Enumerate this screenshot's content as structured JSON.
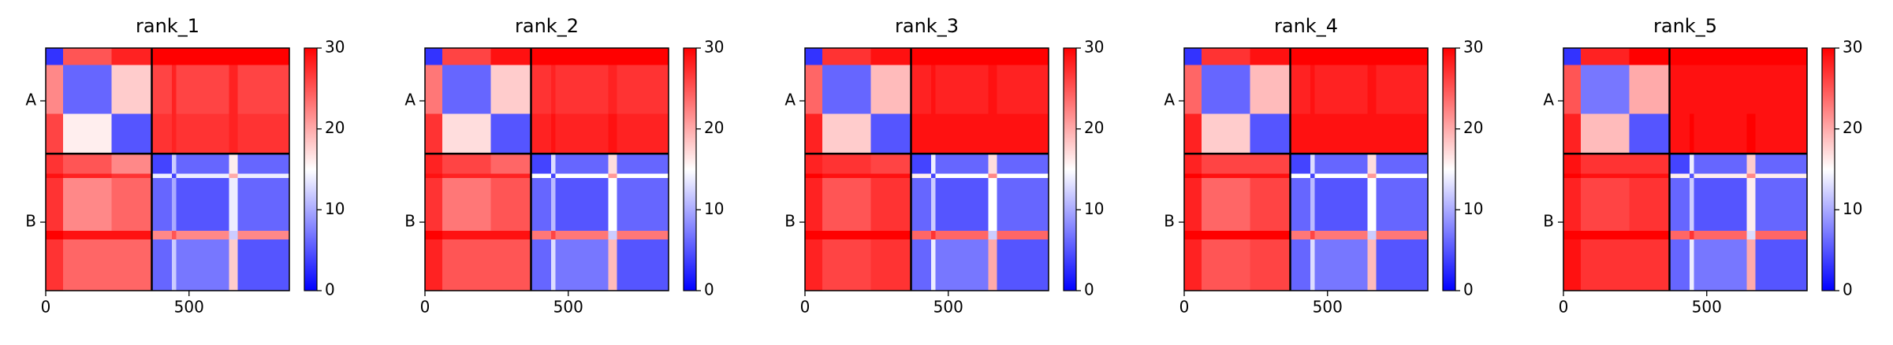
{
  "chart_data": [
    {
      "type": "heatmap",
      "title": "rank_1",
      "colormap": "bwr",
      "bins": [
        0,
        60,
        230,
        370,
        440,
        455,
        640,
        670,
        850
      ],
      "xlim": [
        0,
        850
      ],
      "ylim": [
        0,
        850
      ],
      "invert_y": true,
      "xticks": [
        0,
        500
      ],
      "yticks": [
        {
          "value": 185,
          "label": "A"
        },
        {
          "value": 610,
          "label": "B"
        }
      ],
      "chain_breaks": [
        370
      ],
      "clim": [
        0,
        30
      ],
      "cticks": [
        0,
        10,
        20,
        30
      ],
      "values": [
        [
          3,
          25,
          28,
          30,
          30,
          30,
          30,
          30
        ],
        [
          22,
          6,
          18,
          26,
          28,
          26,
          28,
          26
        ],
        [
          26,
          16,
          5,
          27,
          28,
          27,
          28,
          27
        ],
        [
          27,
          25,
          22,
          4,
          12,
          6,
          16,
          6
        ],
        [
          29,
          28,
          27,
          14,
          4,
          14,
          20,
          14
        ],
        [
          27,
          22,
          24,
          6,
          10,
          5,
          14,
          6
        ],
        [
          30,
          29,
          29,
          22,
          25,
          22,
          12,
          22
        ],
        [
          27,
          24,
          24,
          6,
          12,
          7,
          18,
          5
        ]
      ]
    },
    {
      "type": "heatmap",
      "title": "rank_2",
      "colormap": "bwr",
      "bins": [
        0,
        60,
        230,
        370,
        440,
        455,
        640,
        670,
        850
      ],
      "xlim": [
        0,
        850
      ],
      "ylim": [
        0,
        850
      ],
      "invert_y": true,
      "xticks": [
        0,
        500
      ],
      "yticks": [
        {
          "value": 185,
          "label": "A"
        },
        {
          "value": 610,
          "label": "B"
        }
      ],
      "chain_breaks": [
        370
      ],
      "clim": [
        0,
        30
      ],
      "cticks": [
        0,
        10,
        20,
        30
      ],
      "values": [
        [
          3,
          26,
          29,
          30,
          30,
          30,
          30,
          30
        ],
        [
          23,
          6,
          18,
          27,
          28,
          27,
          28,
          27
        ],
        [
          27,
          17,
          5,
          28,
          29,
          28,
          29,
          28
        ],
        [
          28,
          26,
          24,
          4,
          13,
          6,
          17,
          6
        ],
        [
          29,
          28,
          28,
          15,
          4,
          15,
          21,
          15
        ],
        [
          27,
          23,
          25,
          6,
          11,
          5,
          15,
          6
        ],
        [
          30,
          29,
          29,
          23,
          26,
          23,
          12,
          23
        ],
        [
          28,
          25,
          25,
          6,
          13,
          7,
          19,
          5
        ]
      ]
    },
    {
      "type": "heatmap",
      "title": "rank_3",
      "colormap": "bwr",
      "bins": [
        0,
        60,
        230,
        370,
        440,
        455,
        640,
        670,
        850
      ],
      "xlim": [
        0,
        850
      ],
      "ylim": [
        0,
        850
      ],
      "invert_y": true,
      "xticks": [
        0,
        500
      ],
      "yticks": [
        {
          "value": 185,
          "label": "A"
        },
        {
          "value": 610,
          "label": "B"
        }
      ],
      "chain_breaks": [
        370
      ],
      "clim": [
        0,
        30
      ],
      "cticks": [
        0,
        10,
        20,
        30
      ],
      "values": [
        [
          3,
          27,
          29,
          30,
          30,
          30,
          30,
          30
        ],
        [
          24,
          6,
          19,
          28,
          29,
          28,
          29,
          28
        ],
        [
          28,
          18,
          5,
          29,
          29,
          29,
          29,
          29
        ],
        [
          28,
          27,
          26,
          4,
          14,
          6,
          17,
          6
        ],
        [
          30,
          29,
          29,
          16,
          4,
          15,
          22,
          15
        ],
        [
          28,
          25,
          27,
          6,
          12,
          5,
          15,
          6
        ],
        [
          30,
          30,
          30,
          24,
          27,
          24,
          12,
          24
        ],
        [
          28,
          26,
          27,
          6,
          14,
          7,
          20,
          5
        ]
      ]
    },
    {
      "type": "heatmap",
      "title": "rank_4",
      "colormap": "bwr",
      "bins": [
        0,
        60,
        230,
        370,
        440,
        455,
        640,
        670,
        850
      ],
      "xlim": [
        0,
        850
      ],
      "ylim": [
        0,
        850
      ],
      "invert_y": true,
      "xticks": [
        0,
        500
      ],
      "yticks": [
        {
          "value": 185,
          "label": "A"
        },
        {
          "value": 610,
          "label": "B"
        }
      ],
      "chain_breaks": [
        370
      ],
      "clim": [
        0,
        30
      ],
      "cticks": [
        0,
        10,
        20,
        30
      ],
      "values": [
        [
          3,
          27,
          29,
          30,
          30,
          30,
          30,
          30
        ],
        [
          24,
          6,
          19,
          28,
          29,
          28,
          29,
          28
        ],
        [
          28,
          18,
          5,
          29,
          29,
          29,
          29,
          29
        ],
        [
          28,
          26,
          26,
          4,
          13,
          6,
          17,
          6
        ],
        [
          30,
          29,
          29,
          15,
          4,
          15,
          21,
          15
        ],
        [
          28,
          24,
          26,
          6,
          11,
          5,
          15,
          6
        ],
        [
          30,
          30,
          30,
          23,
          26,
          23,
          12,
          23
        ],
        [
          28,
          25,
          26,
          6,
          13,
          7,
          19,
          5
        ]
      ]
    },
    {
      "type": "heatmap",
      "title": "rank_5",
      "colormap": "bwr",
      "bins": [
        0,
        60,
        230,
        370,
        440,
        455,
        640,
        670,
        850
      ],
      "xlim": [
        0,
        850
      ],
      "ylim": [
        0,
        850
      ],
      "invert_y": true,
      "xticks": [
        0,
        500
      ],
      "yticks": [
        {
          "value": 185,
          "label": "A"
        },
        {
          "value": 610,
          "label": "B"
        }
      ],
      "chain_breaks": [
        370
      ],
      "clim": [
        0,
        30
      ],
      "cticks": [
        0,
        10,
        20,
        30
      ],
      "values": [
        [
          3,
          28,
          30,
          30,
          30,
          30,
          30,
          30
        ],
        [
          25,
          7,
          20,
          29,
          29,
          29,
          29,
          29
        ],
        [
          28,
          19,
          5,
          29,
          30,
          29,
          30,
          29
        ],
        [
          29,
          27,
          27,
          4,
          14,
          6,
          18,
          6
        ],
        [
          30,
          29,
          29,
          16,
          5,
          16,
          22,
          16
        ],
        [
          28,
          26,
          27,
          6,
          12,
          5,
          16,
          6
        ],
        [
          30,
          30,
          30,
          24,
          27,
          24,
          13,
          24
        ],
        [
          29,
          27,
          27,
          6,
          14,
          7,
          20,
          5
        ]
      ]
    }
  ]
}
